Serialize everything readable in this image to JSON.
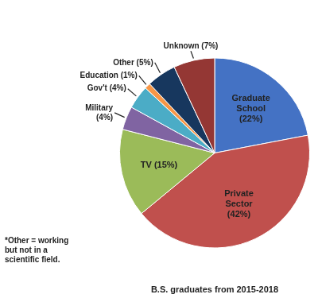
{
  "chart_data": {
    "type": "pie",
    "categories": [
      "Graduate\nSchool\n(22%)",
      "Private\nSector\n(42%)",
      "TV (15%)",
      "Military\n(4%)",
      "Gov't (4%)",
      "Education (1%)",
      "Other (5%)",
      "Unknown (7%)"
    ],
    "values": [
      22,
      42,
      15,
      4,
      4,
      1,
      5,
      7
    ],
    "colors": [
      "#4472C4",
      "#C0504D",
      "#9BBB59",
      "#8064A2",
      "#4BACC6",
      "#F79646",
      "#17375E",
      "#943734"
    ],
    "subtitle": "B.S. graduates from 2015-2018",
    "footnote": "*Other = working\nbut not in a\nscientific field."
  }
}
